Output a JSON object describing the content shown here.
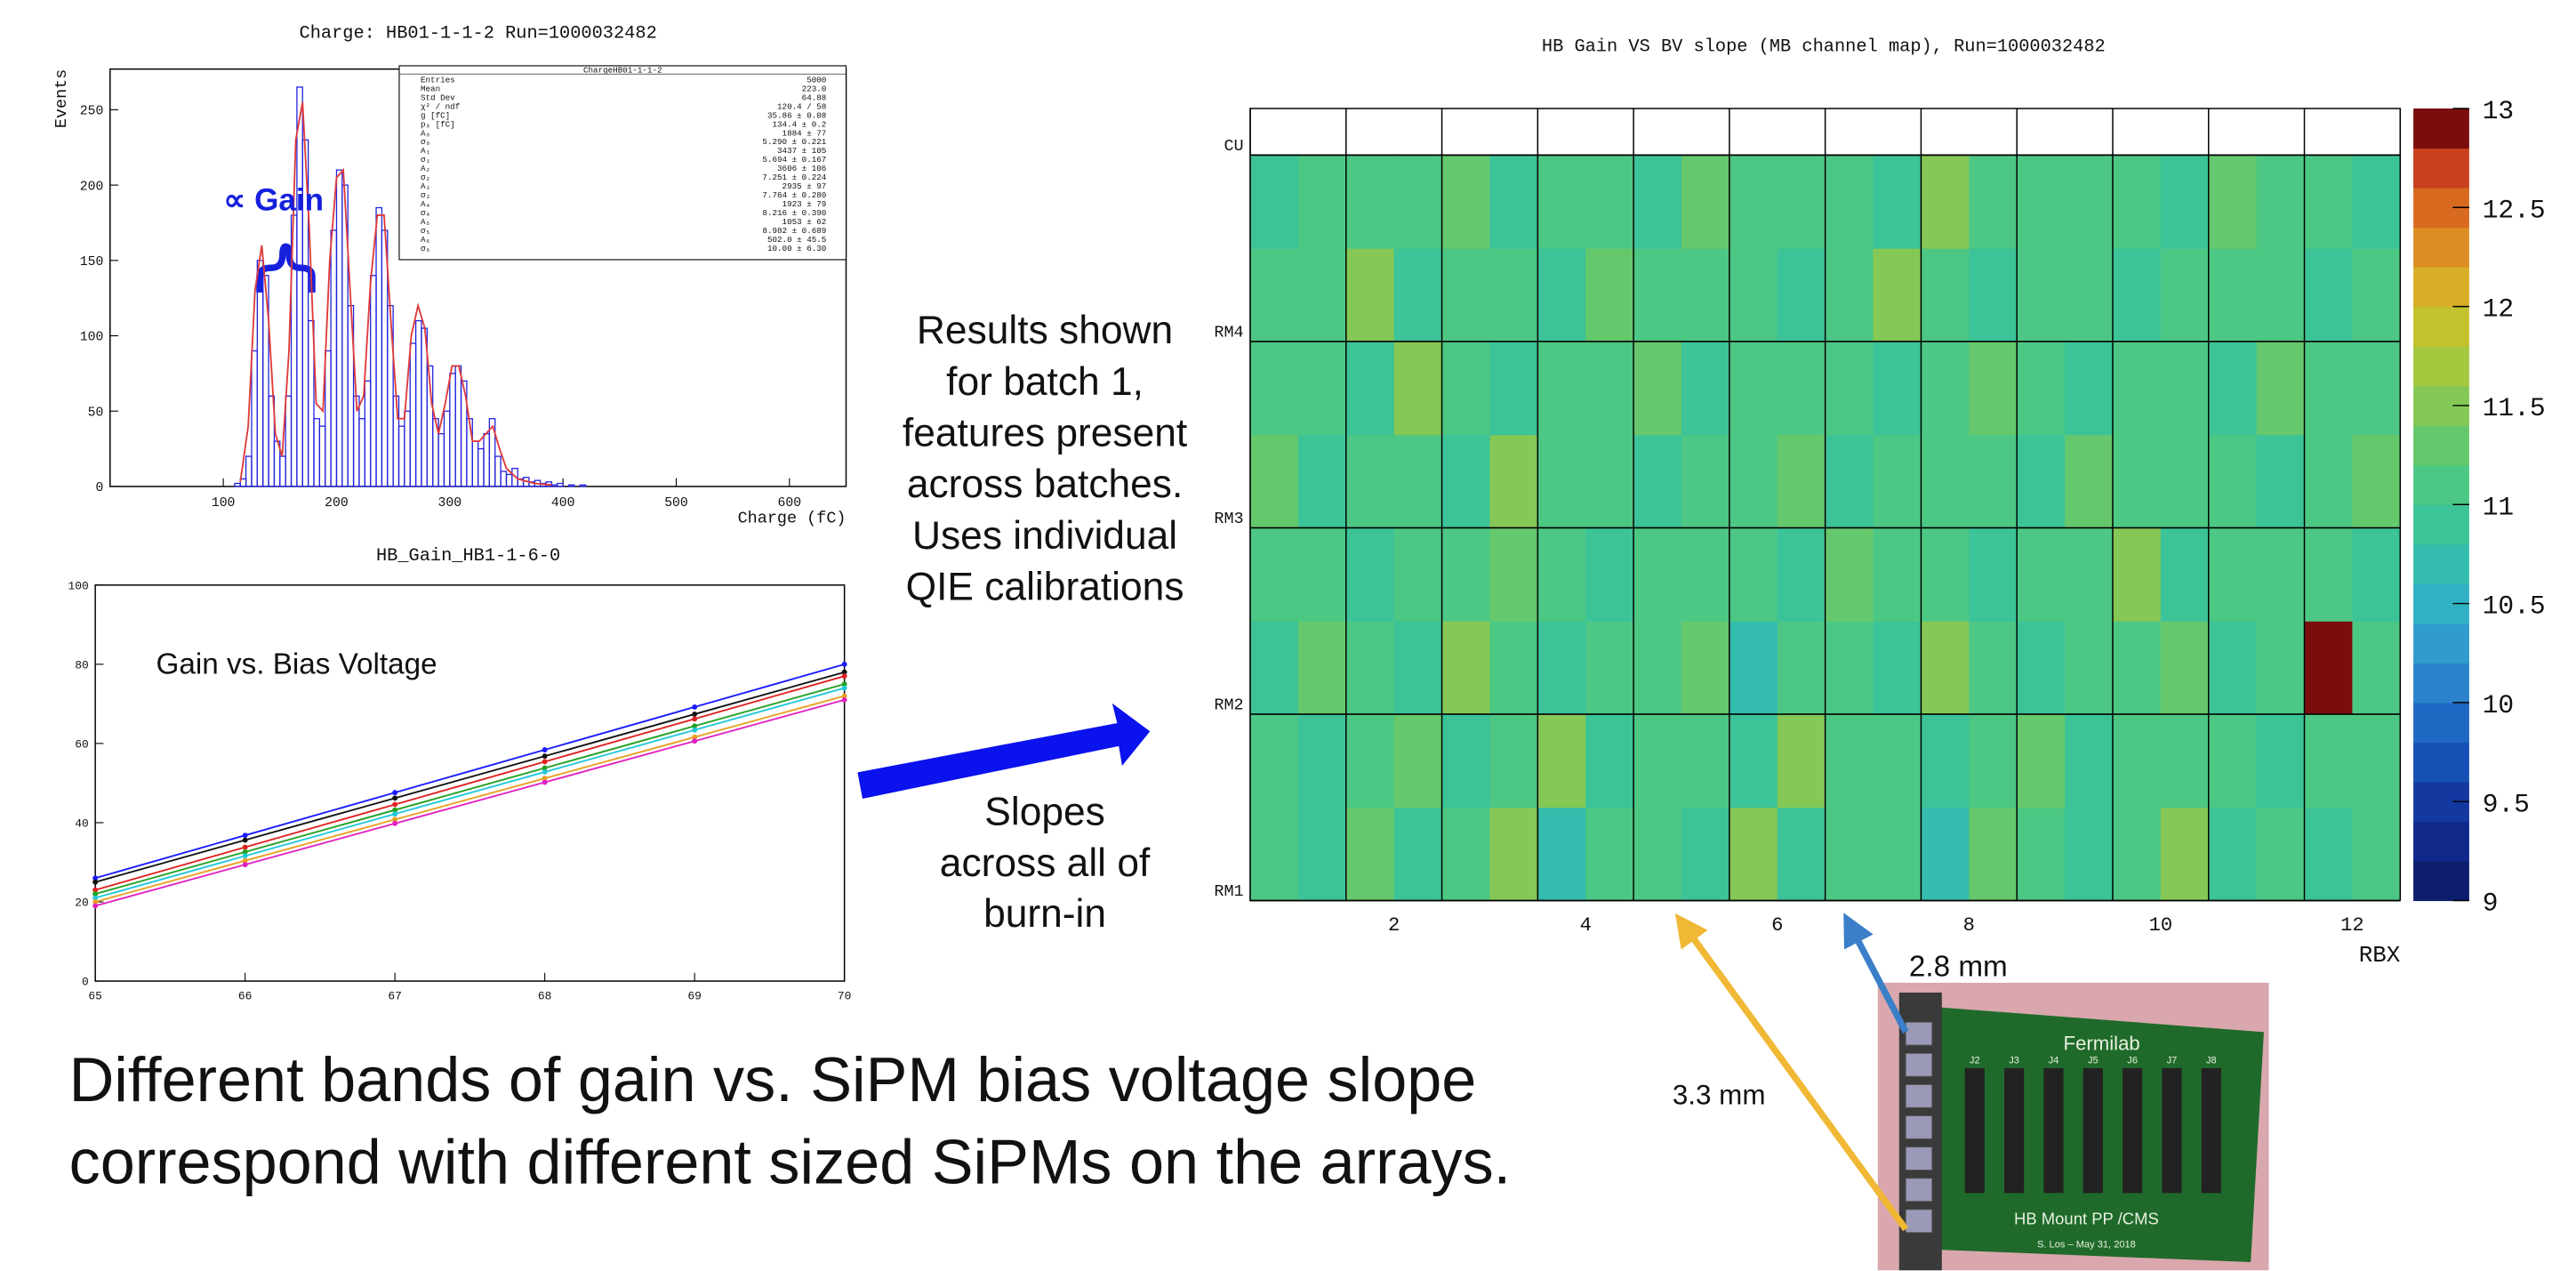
{
  "chart_data": [
    {
      "type": "histogram",
      "title": "Charge: HB01-1-1-2 Run=1000032482",
      "xlabel": "Charge (fC)",
      "ylabel": "Events",
      "color": "#2222dd",
      "bins": [
        110,
        115,
        120,
        125,
        130,
        135,
        140,
        145,
        150,
        155,
        160,
        165,
        170,
        175,
        180,
        185,
        190,
        195,
        200,
        205,
        210,
        215,
        220,
        225,
        230,
        235,
        240,
        245,
        250,
        255,
        260,
        265,
        270,
        275,
        280,
        285,
        290,
        295,
        300,
        305,
        310,
        315,
        320,
        325,
        330,
        335,
        340,
        345,
        350,
        355,
        360,
        365,
        370,
        375,
        380,
        385,
        390,
        395,
        400,
        405,
        410,
        415,
        420
      ],
      "counts": [
        2,
        5,
        20,
        90,
        150,
        140,
        60,
        30,
        20,
        60,
        180,
        265,
        230,
        110,
        45,
        40,
        90,
        170,
        210,
        200,
        120,
        60,
        45,
        70,
        140,
        185,
        170,
        120,
        60,
        40,
        50,
        95,
        110,
        105,
        80,
        45,
        35,
        50,
        75,
        80,
        70,
        45,
        30,
        25,
        35,
        45,
        20,
        10,
        8,
        12,
        5,
        6,
        3,
        4,
        2,
        3,
        1,
        2,
        0,
        1,
        0,
        1
      ],
      "fit": {
        "color": "#e03a3a",
        "x": [
          115,
          122,
          128,
          134,
          140,
          146,
          152,
          158,
          164,
          170,
          176,
          182,
          188,
          194,
          200,
          206,
          212,
          218,
          224,
          230,
          236,
          242,
          248,
          254,
          260,
          266,
          272,
          278,
          284,
          290,
          296,
          302,
          308,
          314,
          320,
          326,
          332,
          338,
          344,
          350,
          360,
          375,
          390
        ],
        "values": [
          3,
          40,
          130,
          160,
          110,
          35,
          20,
          90,
          230,
          255,
          170,
          55,
          50,
          150,
          205,
          210,
          130,
          50,
          60,
          135,
          180,
          180,
          110,
          45,
          45,
          100,
          120,
          105,
          55,
          35,
          55,
          80,
          80,
          60,
          30,
          30,
          35,
          40,
          25,
          12,
          5,
          2,
          1
        ]
      },
      "xlim": [
        0,
        650
      ],
      "ylim": [
        0,
        277
      ],
      "xticks": [
        100,
        200,
        300,
        400,
        500,
        600
      ],
      "yticks": [
        0,
        50,
        100,
        150,
        200,
        250
      ],
      "stats": {
        "title": "ChargeHB01-1-1-2",
        "rows": [
          [
            "Entries",
            "5000"
          ],
          [
            "Mean",
            "223.0"
          ],
          [
            "Std Dev",
            "64.88"
          ],
          [
            "χ² / ndf",
            "120.4 / 58"
          ],
          [
            "g [fC]",
            "35.86 ± 0.08"
          ],
          [
            "p₀ [fC]",
            "134.4 ± 0.2"
          ],
          [
            "A₀",
            "1884 ± 77"
          ],
          [
            "σ₀",
            "5.290 ± 0.221"
          ],
          [
            "A₁",
            "3437 ± 105"
          ],
          [
            "σ₁",
            "5.694 ± 0.167"
          ],
          [
            "A₂",
            "3606 ± 106"
          ],
          [
            "σ₂",
            "7.251 ± 0.224"
          ],
          [
            "A₃",
            "2935 ± 97"
          ],
          [
            "σ₃",
            "7.764 ± 0.280"
          ],
          [
            "A₄",
            "1923 ± 79"
          ],
          [
            "σ₄",
            "8.216 ± 0.390"
          ],
          [
            "A₅",
            "1053 ± 62"
          ],
          [
            "σ₅",
            "8.982 ± 0.689"
          ],
          [
            "A₆",
            "502.0 ± 45.5"
          ],
          [
            "σ₆",
            "10.00 ± 6.30"
          ]
        ]
      }
    },
    {
      "type": "line",
      "title": "HB_Gain_HB1-1-6-0",
      "annotation": "Gain vs. Bias Voltage",
      "x": [
        65,
        66,
        67,
        68,
        69,
        70
      ],
      "series": [
        {
          "color": "#1a1aff",
          "values": [
            26,
            36.8,
            47.6,
            58.4,
            69.2,
            80
          ]
        },
        {
          "color": "#111111",
          "values": [
            25,
            35.6,
            46.2,
            56.8,
            67.4,
            78
          ]
        },
        {
          "color": "#e02020",
          "values": [
            23,
            33.8,
            44.6,
            55.4,
            66.2,
            77
          ]
        },
        {
          "color": "#20a020",
          "values": [
            22,
            32.6,
            43.2,
            53.8,
            64.4,
            75
          ]
        },
        {
          "color": "#20c8d8",
          "values": [
            21,
            31.6,
            42.2,
            52.8,
            63.4,
            74
          ]
        },
        {
          "color": "#e8a020",
          "values": [
            20,
            30.4,
            40.8,
            51.2,
            61.6,
            72
          ]
        },
        {
          "color": "#e020c0",
          "values": [
            19,
            29.4,
            39.8,
            50.2,
            60.6,
            71
          ]
        }
      ],
      "xlim": [
        65,
        70
      ],
      "ylim": [
        0,
        100
      ],
      "xticks": [
        65,
        66,
        67,
        68,
        69,
        70
      ],
      "yticks": [
        0,
        20,
        40,
        60,
        80,
        100
      ]
    },
    {
      "type": "heatmap",
      "title": "HB Gain VS BV slope (MB channel map), Run=1000032482",
      "xlabel": "RBX",
      "xbins": [
        0.5,
        1,
        1.5,
        2,
        2.5,
        3,
        3.5,
        4,
        4.5,
        5,
        5.5,
        6,
        6.5,
        7,
        7.5,
        8,
        8.5,
        9,
        9.5,
        10,
        10.5,
        11,
        11.5,
        12,
        12.5
      ],
      "ybins": [
        0,
        0.5,
        1,
        1.5,
        2,
        2.5,
        3,
        3.5,
        4
      ],
      "z": [
        [
          11.0,
          10.8,
          11.3,
          10.9,
          11.1,
          11.4,
          10.7,
          11.2,
          11.0,
          10.9,
          11.5,
          10.8,
          11.1,
          11.0,
          10.7,
          11.3,
          11.2,
          10.9,
          11.0,
          11.4,
          10.8,
          11.1,
          10.9,
          11.2
        ],
        [
          11.2,
          10.9,
          11.0,
          11.3,
          10.8,
          11.1,
          11.6,
          10.9,
          11.2,
          11.0,
          10.8,
          11.4,
          11.0,
          11.2,
          10.9,
          11.1,
          11.3,
          10.8,
          11.1,
          11.0,
          11.2,
          10.9,
          11.0,
          11.1
        ],
        [
          10.9,
          11.3,
          11.1,
          10.8,
          11.4,
          11.0,
          10.9,
          11.2,
          11.1,
          11.3,
          10.7,
          11.0,
          11.2,
          10.9,
          11.4,
          11.0,
          10.8,
          11.2,
          11.0,
          11.3,
          10.9,
          11.2,
          13.0,
          11.0
        ],
        [
          11.1,
          11.0,
          10.8,
          11.2,
          11.0,
          11.3,
          11.1,
          10.8,
          11.0,
          11.2,
          11.1,
          10.9,
          11.3,
          11.0,
          11.1,
          10.8,
          11.2,
          11.0,
          11.4,
          10.9,
          11.1,
          11.0,
          11.2,
          10.9
        ],
        [
          11.3,
          10.9,
          11.2,
          11.0,
          10.9,
          11.5,
          11.0,
          11.1,
          10.8,
          11.2,
          11.0,
          11.3,
          10.9,
          11.1,
          11.0,
          11.2,
          10.9,
          11.3,
          11.0,
          11.1,
          11.2,
          10.8,
          11.0,
          11.3
        ],
        [
          11.0,
          11.2,
          10.9,
          11.4,
          11.1,
          10.8,
          11.2,
          11.0,
          11.3,
          10.9,
          11.1,
          11.0,
          11.2,
          10.8,
          11.1,
          11.3,
          11.0,
          10.9,
          11.2,
          11.0,
          10.9,
          11.3,
          11.1,
          11.0
        ],
        [
          11.2,
          11.0,
          11.5,
          10.9,
          11.0,
          11.2,
          10.8,
          11.3,
          11.1,
          11.0,
          11.2,
          10.9,
          11.0,
          11.4,
          11.1,
          10.9,
          11.2,
          11.0,
          10.8,
          11.2,
          11.1,
          11.0,
          10.9,
          11.2
        ],
        [
          10.9,
          11.1,
          11.0,
          11.2,
          11.3,
          10.9,
          11.1,
          11.0,
          10.9,
          11.3,
          11.0,
          11.2,
          11.1,
          10.9,
          11.5,
          11.0,
          11.1,
          11.2,
          11.0,
          10.9,
          11.3,
          11.1,
          11.0,
          10.8
        ]
      ],
      "xlim": [
        0.5,
        12.5
      ],
      "ylim": [
        0,
        4.25
      ],
      "xticks": [
        2,
        4,
        6,
        8,
        10,
        12
      ],
      "yticks": [
        {
          "value": 0,
          "label": "RM1"
        },
        {
          "value": 1,
          "label": "RM2"
        },
        {
          "value": 2,
          "label": "RM3"
        },
        {
          "value": 3,
          "label": "RM4"
        },
        {
          "value": 4,
          "label": "CU"
        }
      ],
      "zlim": [
        9,
        13
      ],
      "zticks": [
        9,
        9.5,
        10,
        10.5,
        11,
        11.5,
        12,
        12.5,
        13
      ],
      "colormap": [
        "#0d1e6e",
        "#10288a",
        "#1338a0",
        "#1750b4",
        "#1e68c4",
        "#2a82cc",
        "#2f9ccc",
        "#30b2c4",
        "#34bcae",
        "#3cc398",
        "#4cc784",
        "#66c86c",
        "#85c855",
        "#a5c83e",
        "#c3c22e",
        "#d8ae28",
        "#dc8e24",
        "#d86a20",
        "#c8401c",
        "#7a0e0e"
      ]
    }
  ],
  "slide": {
    "gain_label": "∝ Gain",
    "note_results": [
      "Results shown",
      "for batch 1,",
      "features present",
      "across batches.",
      "Uses individual",
      "QIE calibrations"
    ],
    "note_slopes": [
      "Slopes",
      "across all of",
      "burn-in"
    ],
    "caption": [
      "Different bands of gain vs. SiPM bias voltage slope",
      "correspond with different sized SiPMs on the arrays."
    ],
    "dim_blue": "2.8 mm",
    "dim_yellow": "3.3 mm",
    "board": {
      "brand": "Fermilab",
      "name": "HB Mount PP /CMS",
      "signature": "S. Los – May 31, 2018",
      "connectors": [
        "J2",
        "J3",
        "J4",
        "J5",
        "J6",
        "J7",
        "J8"
      ]
    }
  }
}
